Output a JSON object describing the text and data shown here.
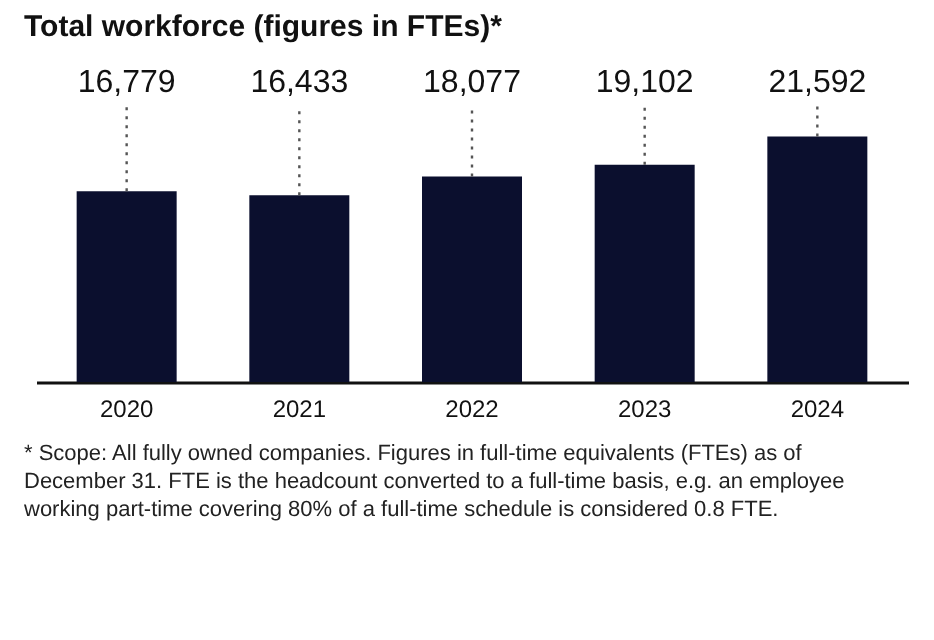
{
  "chart_data": {
    "type": "bar",
    "title": "Total workforce (figures in FTEs)*",
    "categories": [
      "2020",
      "2021",
      "2022",
      "2023",
      "2024"
    ],
    "values": [
      16779,
      16433,
      18077,
      19102,
      21592
    ],
    "color": "#0b0f2e",
    "value_labels": [
      "16,779",
      "16,433",
      "18,077",
      "19,102",
      "21,592"
    ],
    "grid": false,
    "annotations": [
      "* Scope: All fully owned companies. Figures in full-time equivalents (FTEs) as of December 31. FTE is the headcount converted to a full-time basis, e.g. an employee working part-time covering 80% of a full-time schedule is considered 0.8 FTE."
    ]
  }
}
